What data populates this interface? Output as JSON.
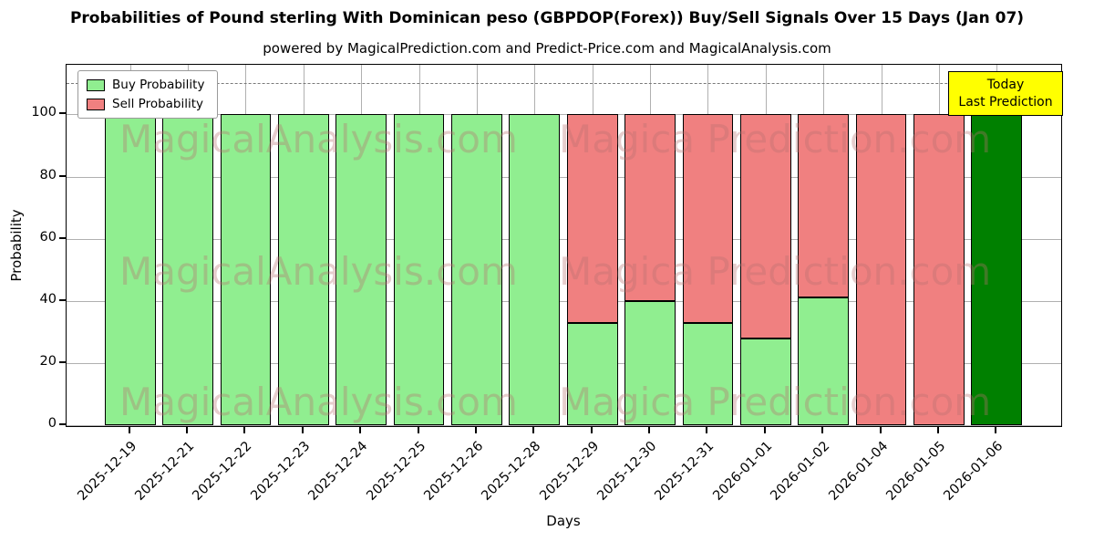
{
  "chart_data": {
    "type": "bar",
    "stacked": true,
    "title": "Probabilities of Pound sterling With Dominican peso (GBPDOP(Forex)) Buy/Sell Signals Over 15 Days (Jan 07)",
    "subtitle": "powered by MagicalPrediction.com and Predict-Price.com and MagicalAnalysis.com",
    "xlabel": "Days",
    "ylabel": "Probability",
    "categories": [
      "2025-12-19",
      "2025-12-21",
      "2025-12-22",
      "2025-12-23",
      "2025-12-24",
      "2025-12-25",
      "2025-12-26",
      "2025-12-28",
      "2025-12-29",
      "2025-12-30",
      "2025-12-31",
      "2026-01-01",
      "2026-01-02",
      "2026-01-04",
      "2026-01-05",
      "2026-01-06"
    ],
    "series": [
      {
        "name": "Buy Probability",
        "color": "#90EE90",
        "values": [
          100,
          100,
          100,
          100,
          100,
          100,
          100,
          100,
          33,
          40,
          33,
          28,
          41,
          0,
          0,
          100
        ]
      },
      {
        "name": "Sell Probability",
        "color": "#F08080",
        "values": [
          0,
          0,
          0,
          0,
          0,
          0,
          0,
          0,
          67,
          60,
          67,
          72,
          59,
          100,
          100,
          0
        ]
      }
    ],
    "final_bar_color": "#008000",
    "bar_edge_color": "#000000",
    "yticks": [
      0,
      20,
      40,
      60,
      80,
      100
    ],
    "ylim": [
      0,
      116
    ],
    "dashed_line_y": 110,
    "grid": true,
    "grid_color": "#b0b0b0",
    "legend_position": "upper-left"
  },
  "annotation": {
    "line1": "Today",
    "line2": "Last Prediction",
    "bg_color": "#FFFF00"
  },
  "watermarks": {
    "left": "MagicalAnalysis.com",
    "right": "Magica Prediction.com"
  }
}
